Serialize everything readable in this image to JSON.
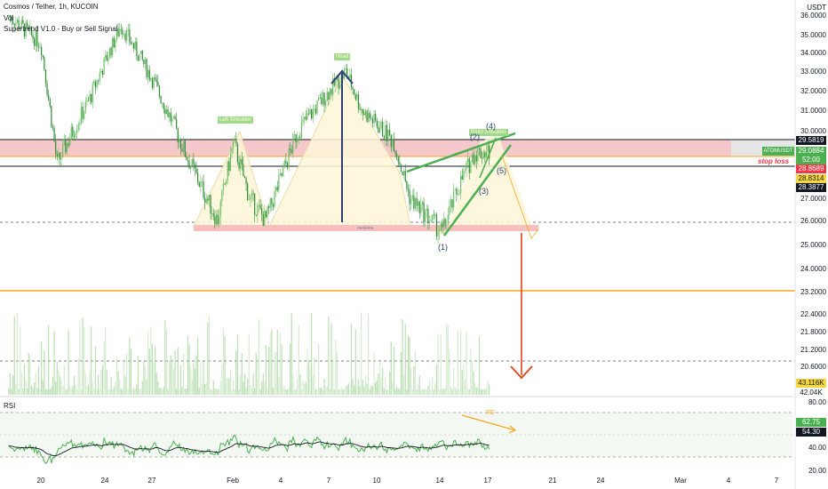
{
  "header": {
    "symbol_line": "Cosmos / Tether, 1h, KUCOIN",
    "vol_label": "Vol",
    "indicator_label": "Supertrend V1.0 - Buy or Sell Signal",
    "rsi_label": "RSI",
    "currency": "USDT"
  },
  "colors": {
    "bull": "#6cbf63",
    "bear": "#2f8a36",
    "resistance_zone": "#f4c2c7",
    "pattern_fill": "#fdf6d8",
    "down_arrow": "#e0431a",
    "head_arrow": "#2d3f72",
    "orange_line": "#f5a623",
    "wedge": "#4caf50"
  },
  "price_axis": {
    "ticks": [
      "36.0000",
      "35.0000",
      "34.0000",
      "33.0000",
      "32.0000",
      "31.0000",
      "30.0000",
      "27.0000",
      "26.0000",
      "25.0000",
      "24.0000",
      "23.2000",
      "22.4000",
      "21.8000",
      "21.2000",
      "20.6000"
    ],
    "tags": [
      {
        "text": "29.5819",
        "color": "#131722"
      },
      {
        "text": "ATOMUSDT",
        "color": "#4caf50"
      },
      {
        "text": "29.0884",
        "color": "#4caf50"
      },
      {
        "text": "52:00",
        "color": "#4caf50"
      },
      {
        "text": "28.8689",
        "color": "#f23645"
      },
      {
        "text": "28.8314",
        "color": "#f5d742"
      },
      {
        "text": "28.3877",
        "color": "#131722"
      },
      {
        "text": "43.116K",
        "color": "#f5d742"
      },
      {
        "text": "42.04K",
        "color": "#131722"
      }
    ]
  },
  "rsi_axis": {
    "ticks": [
      "80.00",
      "40.00",
      "20.00"
    ],
    "tags": [
      {
        "text": "62.75",
        "color": "#4caf50"
      },
      {
        "text": "54.30",
        "color": "#131722"
      }
    ]
  },
  "time_axis": [
    "20",
    "24",
    "27",
    "Feb",
    "4",
    "7",
    "10",
    "14",
    "17",
    "21",
    "24",
    "Mar",
    "4",
    "7"
  ],
  "annotations": {
    "head": "Head",
    "left_shoulder": "Left Shoulder",
    "right_shoulder": "Right Shoulder",
    "neckline": "neckline",
    "stop_loss": "stop loss",
    "rd": "RD",
    "waves": [
      "(1)",
      "(2)",
      "(3)",
      "(4)",
      "(5)"
    ]
  },
  "chart_data": {
    "type": "candlestick",
    "title": "Cosmos / Tether, 1h, KUCOIN",
    "xlabel": "",
    "ylabel": "USDT",
    "x_ticks": [
      "20",
      "24",
      "27",
      "Feb",
      "4",
      "7",
      "10",
      "14",
      "17",
      "21",
      "24",
      "Mar",
      "4",
      "7"
    ],
    "levels": {
      "resistance_top": 29.5819,
      "last_price": 29.0884,
      "stop_loss": 28.8689,
      "support": 28.3877,
      "neckline": 26.0,
      "target": 20.6,
      "orange_line": 23.2
    },
    "price_path": [
      {
        "x": "Jan 18",
        "y": 36.0
      },
      {
        "x": "Jan 20",
        "y": 34.5
      },
      {
        "x": "Jan 21",
        "y": 28.5
      },
      {
        "x": "Jan 23",
        "y": 31.5
      },
      {
        "x": "Jan 25",
        "y": 35.5
      },
      {
        "x": "Jan 27",
        "y": 32.5
      },
      {
        "x": "Jan 29",
        "y": 29.0
      },
      {
        "x": "Jan 31",
        "y": 26.0
      },
      {
        "x": "Feb 1",
        "y": 29.5
      },
      {
        "x": "Feb 2",
        "y": 27.0
      },
      {
        "x": "Feb 3",
        "y": 26.0
      },
      {
        "x": "Feb 5",
        "y": 30.0
      },
      {
        "x": "Feb 7",
        "y": 32.0
      },
      {
        "x": "Feb 8",
        "y": 33.0
      },
      {
        "x": "Feb 9",
        "y": 31.0
      },
      {
        "x": "Feb 11",
        "y": 29.5
      },
      {
        "x": "Feb 12",
        "y": 27.0
      },
      {
        "x": "Feb 14",
        "y": 25.5
      },
      {
        "x": "Feb 15",
        "y": 27.5
      },
      {
        "x": "Feb 16",
        "y": 29.0
      },
      {
        "x": "Feb 17",
        "y": 29.1
      }
    ],
    "rsi": {
      "last": 62.75,
      "ma": 54.3,
      "ylim": [
        20,
        80
      ]
    },
    "volume": {
      "last": "43.116K",
      "ma": "42.04K"
    }
  }
}
